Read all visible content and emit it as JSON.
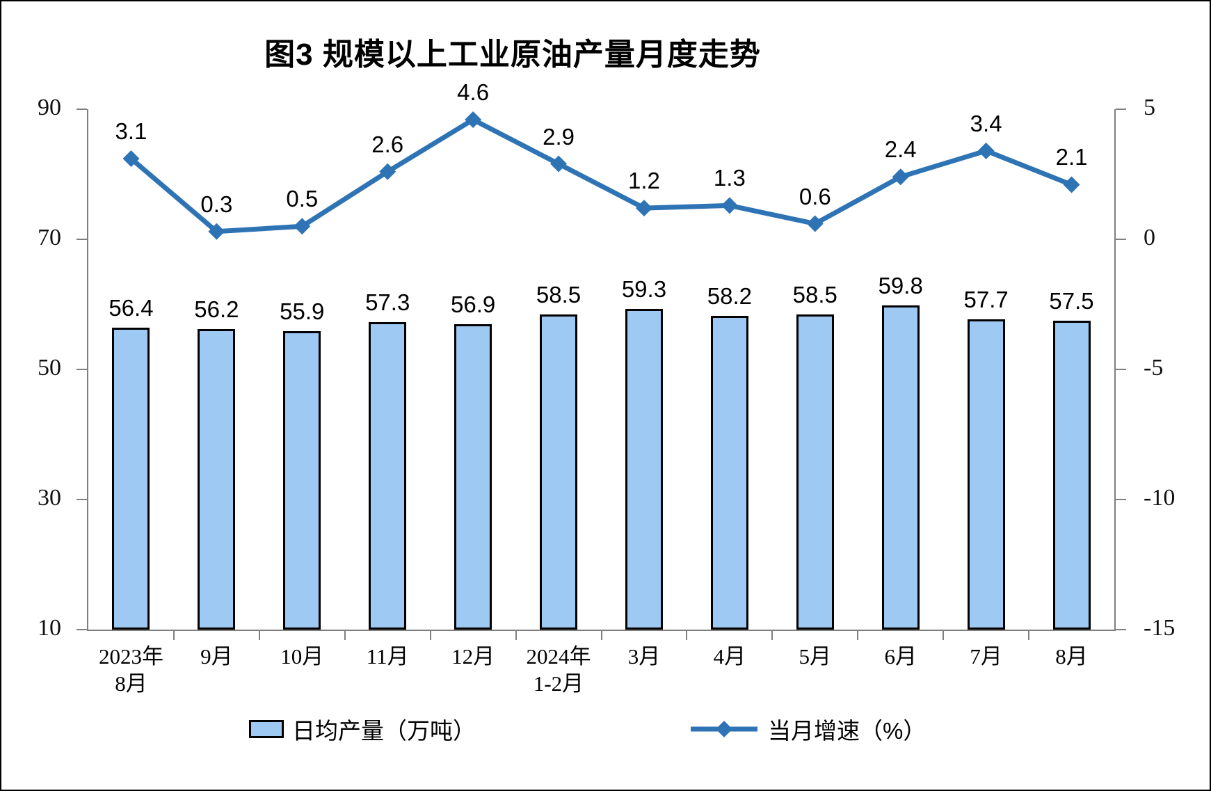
{
  "chart_data": {
    "type": "combo-bar-line",
    "title": "图3 规模以上工业原油产量月度走势",
    "categories": [
      "2023年8月",
      "9月",
      "10月",
      "11月",
      "12月",
      "2024年1-2月",
      "3月",
      "4月",
      "5月",
      "6月",
      "7月",
      "8月"
    ],
    "x_tick_label_lines": [
      [
        "2023年",
        "8月"
      ],
      [
        "9月"
      ],
      [
        "10月"
      ],
      [
        "11月"
      ],
      [
        "12月"
      ],
      [
        "2024年",
        "1-2月"
      ],
      [
        "3月"
      ],
      [
        "4月"
      ],
      [
        "5月"
      ],
      [
        "6月"
      ],
      [
        "7月"
      ],
      [
        "8月"
      ]
    ],
    "series": [
      {
        "name": "日均产量（万吨）",
        "type": "bar",
        "axis": "left",
        "values": [
          56.4,
          56.2,
          55.9,
          57.3,
          56.9,
          58.5,
          59.3,
          58.2,
          58.5,
          59.8,
          57.7,
          57.5
        ],
        "fill_color": "#9DC9F2",
        "border_color": "#000000"
      },
      {
        "name": "当月增速（%）",
        "type": "line",
        "axis": "right",
        "values": [
          3.1,
          0.3,
          0.5,
          2.6,
          4.6,
          2.9,
          1.2,
          1.3,
          0.6,
          2.4,
          3.4,
          2.1
        ],
        "line_color": "#2E74B5",
        "marker": "diamond"
      }
    ],
    "left_axis": {
      "min": 10,
      "max": 90,
      "ticks": [
        90,
        70,
        50,
        30,
        10
      ]
    },
    "right_axis": {
      "min": -15,
      "max": 5,
      "ticks": [
        5,
        0,
        -5,
        -10,
        -15
      ]
    },
    "legend_position": "bottom",
    "grid": false,
    "axis_color": "#7F7F7F",
    "background_color": "#FFFFFF",
    "frame_color": "#000000"
  }
}
